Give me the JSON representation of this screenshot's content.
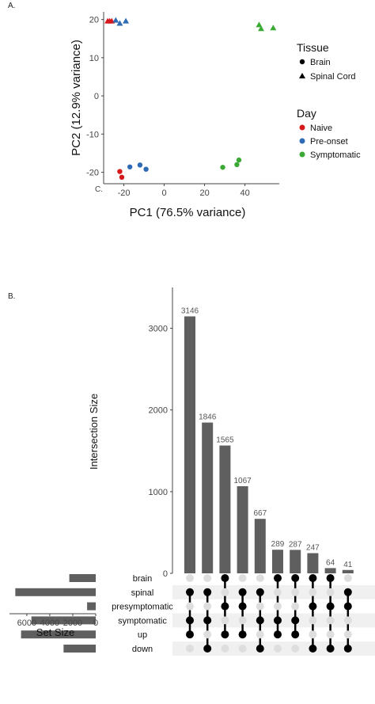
{
  "panel_a_label": "A.",
  "panel_b_label": "B.",
  "chart_data": [
    {
      "type": "scatter",
      "xlabel": "PC1 (76.5% variance)",
      "ylabel": "PC2 (12.9% variance)",
      "xlim": [
        -30,
        57
      ],
      "ylim": [
        -23,
        22
      ],
      "xticks": [
        -20,
        0,
        20,
        40
      ],
      "yticks": [
        -20,
        -10,
        0,
        10,
        20
      ],
      "ytick_labels": [
        "-20",
        "-10",
        "0",
        "10",
        "20"
      ],
      "xtick_labels": [
        "-20",
        "0",
        "20",
        "40"
      ],
      "stray_text": "C.",
      "grid": false,
      "legend": {
        "tissue_title": "Tissue",
        "tissue_items": [
          {
            "label": "Brain",
            "shape": "circle"
          },
          {
            "label": "Spinal Cord",
            "shape": "triangle"
          }
        ],
        "day_title": "Day",
        "day_items": [
          {
            "label": "Naive",
            "color": "#d7191c"
          },
          {
            "label": "Pre-onset",
            "color": "#2f6ab5"
          },
          {
            "label": "Symptomatic",
            "color": "#3aaa35"
          }
        ]
      },
      "points": [
        {
          "x": -28,
          "y": 19.6,
          "day": "Naive",
          "tissue": "Spinal Cord"
        },
        {
          "x": -27,
          "y": 19.6,
          "day": "Naive",
          "tissue": "Spinal Cord"
        },
        {
          "x": -26,
          "y": 19.6,
          "day": "Naive",
          "tissue": "Spinal Cord"
        },
        {
          "x": -24,
          "y": 19.8,
          "day": "Pre-onset",
          "tissue": "Spinal Cord"
        },
        {
          "x": -22,
          "y": 19.0,
          "day": "Pre-onset",
          "tissue": "Spinal Cord"
        },
        {
          "x": -19,
          "y": 19.6,
          "day": "Pre-onset",
          "tissue": "Spinal Cord"
        },
        {
          "x": -22,
          "y": -19.8,
          "day": "Naive",
          "tissue": "Brain"
        },
        {
          "x": -21,
          "y": -21.3,
          "day": "Naive",
          "tissue": "Brain"
        },
        {
          "x": -17,
          "y": -18.6,
          "day": "Pre-onset",
          "tissue": "Brain"
        },
        {
          "x": -12,
          "y": -18.1,
          "day": "Pre-onset",
          "tissue": "Brain"
        },
        {
          "x": -9,
          "y": -19.2,
          "day": "Pre-onset",
          "tissue": "Brain"
        },
        {
          "x": 29,
          "y": -18.7,
          "day": "Symptomatic",
          "tissue": "Brain"
        },
        {
          "x": 36,
          "y": -18.0,
          "day": "Symptomatic",
          "tissue": "Brain"
        },
        {
          "x": 37,
          "y": -16.8,
          "day": "Symptomatic",
          "tissue": "Brain"
        },
        {
          "x": 47,
          "y": 18.6,
          "day": "Symptomatic",
          "tissue": "Spinal Cord"
        },
        {
          "x": 48,
          "y": 17.6,
          "day": "Symptomatic",
          "tissue": "Spinal Cord"
        },
        {
          "x": 54,
          "y": 17.8,
          "day": "Symptomatic",
          "tissue": "Spinal Cord"
        }
      ]
    },
    {
      "type": "bar",
      "ylabel": "Intersection Size",
      "ylim": [
        0,
        3500
      ],
      "yticks": [
        0,
        1000,
        2000,
        3000
      ],
      "ytick_labels": [
        "0",
        "1000",
        "2000",
        "3000"
      ],
      "bar_color": "#5f5f5f",
      "values": [
        3146,
        1846,
        1565,
        1067,
        667,
        289,
        287,
        247,
        64,
        41
      ],
      "value_labels": [
        "3146",
        "1846",
        "1565",
        "1067",
        "667",
        "289",
        "287",
        "247",
        "64",
        "41"
      ],
      "sets": [
        "brain",
        "spinal",
        "presymptomatic",
        "symptomatic",
        "up",
        "down"
      ],
      "set_size_label": "Set Size",
      "set_sizes": [
        2300,
        7000,
        750,
        5600,
        6500,
        2800
      ],
      "set_size_xlim": [
        0,
        7300
      ],
      "set_size_ticks": [
        6000,
        4000,
        2000,
        0
      ],
      "set_size_tick_labels": [
        "6000",
        "4000",
        "2000",
        "0"
      ],
      "intersections": [
        [
          1,
          3,
          4
        ],
        [
          1,
          3,
          5
        ],
        [
          0,
          2,
          4
        ],
        [
          1,
          2,
          4
        ],
        [
          1,
          3,
          5
        ],
        [
          0,
          3,
          4
        ],
        [
          0,
          3,
          4
        ],
        [
          0,
          2,
          5
        ],
        [
          0,
          2,
          5
        ],
        [
          1,
          2,
          5
        ]
      ]
    }
  ]
}
